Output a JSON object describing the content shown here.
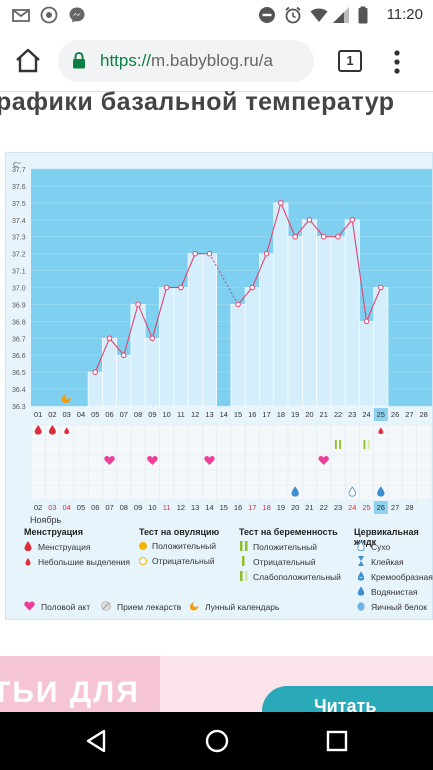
{
  "status_bar": {
    "time": "11:20",
    "icons": [
      "gmail-icon",
      "chrome-icon",
      "messenger-icon",
      "do-not-disturb-icon",
      "alarm-icon",
      "wifi-icon",
      "signal-icon",
      "battery-icon"
    ]
  },
  "browser": {
    "url_scheme": "https://",
    "url_rest": "m.babyblog.ru/a",
    "tab_count": "1"
  },
  "page": {
    "heading": "рафики базальной температур"
  },
  "chart_data": {
    "type": "line",
    "ylabel": "C°",
    "ylim": [
      36.3,
      37.7
    ],
    "yticks": [
      "37.7",
      "37.6",
      "37.5",
      "37.4",
      "37.3",
      "37.2",
      "37.1",
      "37.0",
      "36.9",
      "36.8",
      "36.7",
      "36.6",
      "36.5",
      "36.4",
      "36.3"
    ],
    "x_days": [
      "01",
      "02",
      "03",
      "04",
      "05",
      "06",
      "07",
      "08",
      "09",
      "10",
      "11",
      "12",
      "13",
      "14",
      "15",
      "16",
      "17",
      "18",
      "19",
      "20",
      "21",
      "22",
      "23",
      "24",
      "25",
      "26",
      "27",
      "28"
    ],
    "current_day": "25",
    "series": [
      {
        "values": [
          null,
          null,
          null,
          null,
          36.5,
          36.7,
          36.6,
          36.9,
          36.7,
          37.0,
          37.0,
          37.2,
          37.2,
          null,
          36.9,
          37.0,
          37.2,
          37.5,
          37.3,
          37.4,
          37.3,
          37.3,
          37.4,
          36.8,
          37.0,
          null,
          null,
          null
        ]
      }
    ],
    "date_labels": [
      "02",
      "03",
      "04",
      "05",
      "06",
      "07",
      "08",
      "09",
      "10",
      "11",
      "12",
      "13",
      "14",
      "15",
      "16",
      "17",
      "18",
      "19",
      "20",
      "21",
      "22",
      "23",
      "24",
      "25",
      "26",
      "27",
      "28"
    ],
    "date_red": [
      "03",
      "04",
      "11",
      "17",
      "18",
      "24",
      "25"
    ],
    "current_date": "26",
    "month": "Ноябрь",
    "grid": true
  },
  "legend": {
    "menstruation_header": "Менструация",
    "menstruation": "Менструация",
    "spotting": "Небольшие выделения",
    "ovulation_header": "Тест на овуляцию",
    "ovulation_pos": "Положительный",
    "ovulation_neg": "Отрицательный",
    "pregnancy_header": "Тест на беременность",
    "pregnancy_pos": "Положительный",
    "pregnancy_neg": "Отрицательный",
    "pregnancy_weak": "Слабоположительный",
    "cervical_header": "Цервикальная жидк",
    "cervical_dry": "Сухо",
    "cervical_sticky": "Клейкая",
    "cervical_creamy": "Кремообразная",
    "cervical_watery": "Водянистая",
    "cervical_eggwhite": "Яичный белок",
    "intercourse": "Половой акт",
    "medication": "Прием лекарств",
    "lunar": "Лунный календарь"
  },
  "banner": {
    "text": "ТЬИ ДЛЯ",
    "button": "Читать"
  },
  "colors": {
    "plot_bg": "#7fd0f0",
    "bar_fill": "#d4eefb",
    "line": "#e0456e",
    "period": "#e02d3c",
    "heart": "#ee3f9a",
    "ovulation": "#f4b400",
    "preg_test": "#b7d845"
  }
}
